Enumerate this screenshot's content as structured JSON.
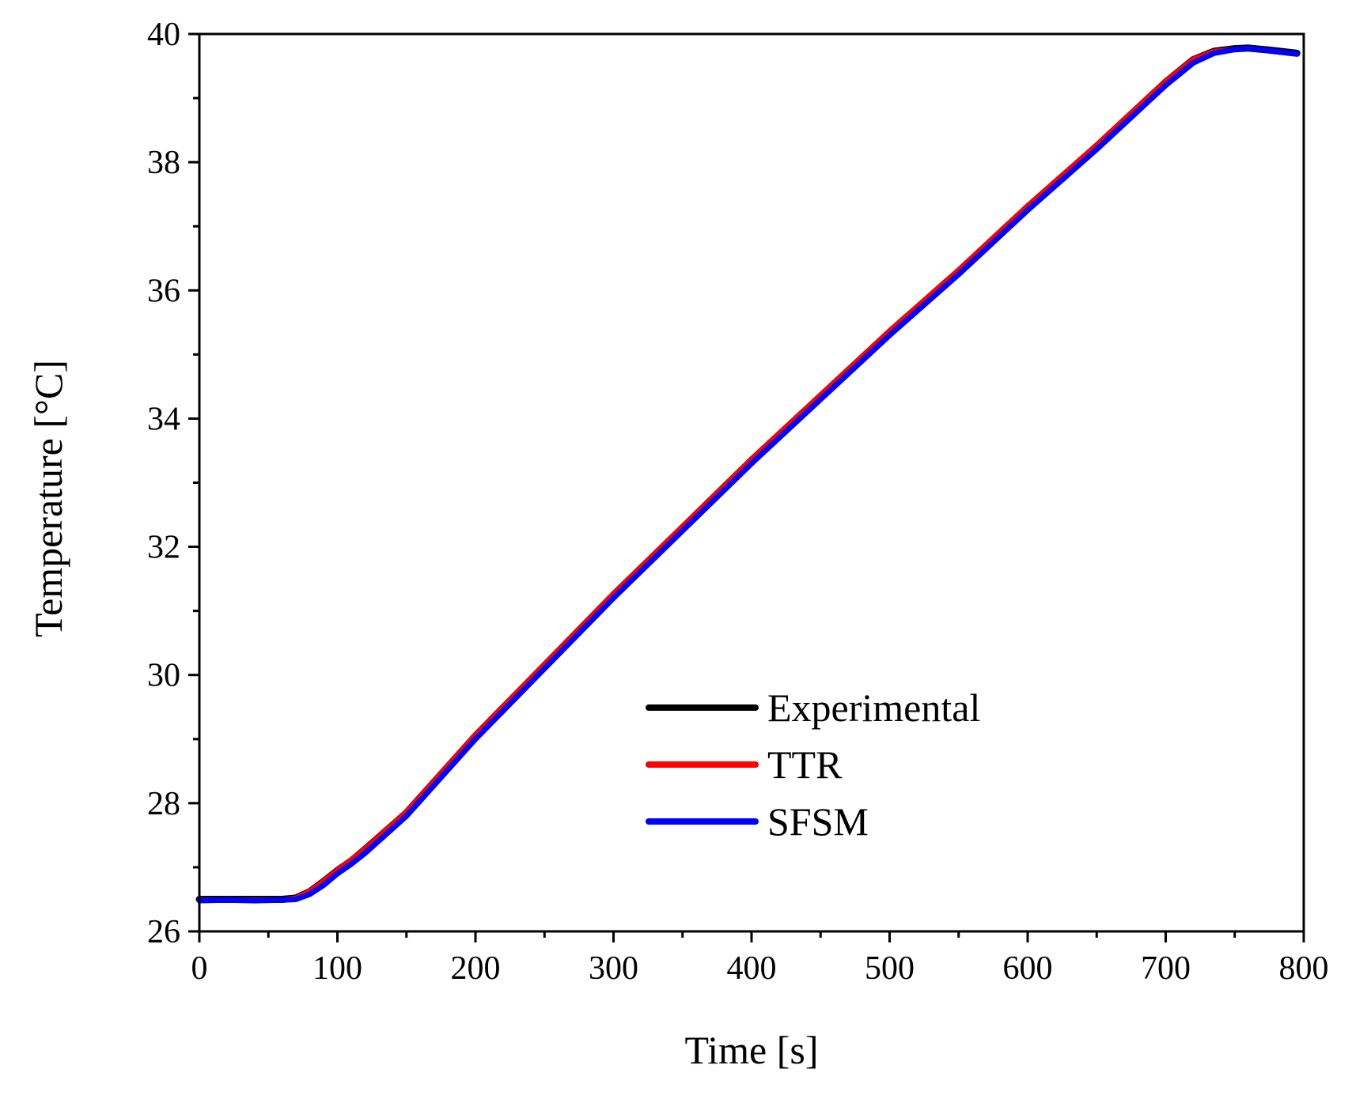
{
  "chart_data": {
    "type": "line",
    "xlabel": "Time [s]",
    "ylabel": "Temperature [°C]",
    "xlim": [
      0,
      800
    ],
    "ylim": [
      26,
      40
    ],
    "x_major_ticks": [
      0,
      100,
      200,
      300,
      400,
      500,
      600,
      700,
      800
    ],
    "x_minor_ticks": [
      50,
      150,
      250,
      350,
      450,
      550,
      650,
      750
    ],
    "y_major_ticks": [
      26,
      28,
      30,
      32,
      34,
      36,
      38,
      40
    ],
    "y_minor_ticks": [
      27,
      29,
      31,
      33,
      35,
      37,
      39
    ],
    "x_tick_labels": [
      "0",
      "100",
      "200",
      "300",
      "400",
      "500",
      "600",
      "700",
      "800"
    ],
    "y_tick_labels": [
      "26",
      "28",
      "30",
      "32",
      "34",
      "36",
      "38",
      "40"
    ],
    "grid": false,
    "legend_position": "bottom-center",
    "series": [
      {
        "name": "Experimental",
        "color": "#000000",
        "x": [
          0,
          20,
          40,
          60,
          70,
          80,
          90,
          100,
          110,
          120,
          150,
          200,
          250,
          300,
          350,
          400,
          450,
          500,
          550,
          600,
          650,
          700,
          720,
          735,
          750,
          760,
          775,
          795
        ],
        "y": [
          26.5,
          26.5,
          26.5,
          26.5,
          26.52,
          26.62,
          26.78,
          26.95,
          27.1,
          27.28,
          27.85,
          29.05,
          30.15,
          31.25,
          32.3,
          33.35,
          34.35,
          35.35,
          36.3,
          37.3,
          38.25,
          39.25,
          39.6,
          39.73,
          39.77,
          39.78,
          39.75,
          39.7
        ]
      },
      {
        "name": "TTR",
        "color": "#ff0000",
        "x": [
          0,
          20,
          40,
          60,
          70,
          80,
          90,
          100,
          110,
          120,
          150,
          200,
          250,
          300,
          350,
          400,
          450,
          500,
          550,
          600,
          650,
          700,
          720,
          735,
          750,
          760,
          775,
          795
        ],
        "y": [
          26.5,
          26.5,
          26.5,
          26.5,
          26.53,
          26.64,
          26.8,
          26.97,
          27.13,
          27.3,
          27.88,
          29.08,
          30.18,
          31.28,
          32.33,
          33.38,
          34.38,
          35.38,
          36.33,
          37.33,
          38.28,
          39.28,
          39.62,
          39.74,
          39.77,
          39.78,
          39.75,
          39.7
        ]
      },
      {
        "name": "SFSM",
        "color": "#0000ff",
        "x": [
          0,
          20,
          40,
          60,
          70,
          80,
          90,
          100,
          110,
          120,
          150,
          200,
          250,
          300,
          350,
          400,
          450,
          500,
          550,
          600,
          650,
          700,
          720,
          735,
          750,
          760,
          775,
          795
        ],
        "y": [
          26.48,
          26.49,
          26.48,
          26.49,
          26.5,
          26.58,
          26.72,
          26.9,
          27.05,
          27.22,
          27.8,
          29.0,
          30.1,
          31.2,
          32.25,
          33.3,
          34.3,
          35.3,
          36.25,
          37.25,
          38.2,
          39.2,
          39.55,
          39.7,
          39.76,
          39.78,
          39.74,
          39.69
        ]
      }
    ]
  }
}
